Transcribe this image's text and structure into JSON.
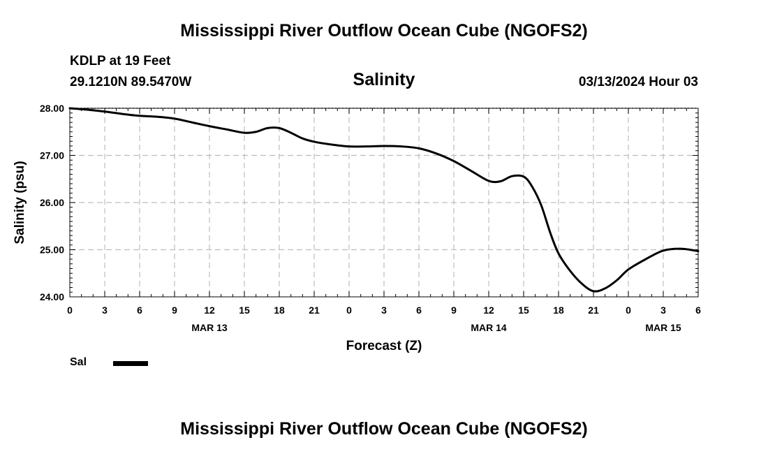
{
  "header": {
    "title": "Mississippi River Outflow Ocean Cube (NGOFS2)",
    "station": "KDLP at 19 Feet",
    "location": "29.1210N  89.5470W",
    "datetime": "03/13/2024 Hour 03"
  },
  "footer": {
    "title": "Mississippi River Outflow Ocean Cube (NGOFS2)"
  },
  "legend": {
    "label": "Sal",
    "color": "#000000"
  },
  "chart_data": {
    "type": "line",
    "title": "Salinity",
    "xlabel": "Forecast (Z)",
    "ylabel": "Salinity (psu)",
    "xlim": [
      0,
      54
    ],
    "ylim": [
      24.0,
      28.0
    ],
    "grid": true,
    "yticks": [
      {
        "value": 24.0,
        "label": "24.00"
      },
      {
        "value": 25.0,
        "label": "25.00"
      },
      {
        "value": 26.0,
        "label": "26.00"
      },
      {
        "value": 27.0,
        "label": "27.00"
      },
      {
        "value": 28.0,
        "label": "28.00"
      }
    ],
    "xticks": [
      {
        "value": 0,
        "label": "0"
      },
      {
        "value": 3,
        "label": "3"
      },
      {
        "value": 6,
        "label": "6"
      },
      {
        "value": 9,
        "label": "9"
      },
      {
        "value": 12,
        "label": "12"
      },
      {
        "value": 15,
        "label": "15"
      },
      {
        "value": 18,
        "label": "18"
      },
      {
        "value": 21,
        "label": "21"
      },
      {
        "value": 24,
        "label": "0"
      },
      {
        "value": 27,
        "label": "3"
      },
      {
        "value": 30,
        "label": "6"
      },
      {
        "value": 33,
        "label": "9"
      },
      {
        "value": 36,
        "label": "12"
      },
      {
        "value": 39,
        "label": "15"
      },
      {
        "value": 42,
        "label": "18"
      },
      {
        "value": 45,
        "label": "21"
      },
      {
        "value": 48,
        "label": "0"
      },
      {
        "value": 51,
        "label": "3"
      },
      {
        "value": 54,
        "label": "6"
      }
    ],
    "date_labels": [
      {
        "value": 12,
        "label": "MAR 13"
      },
      {
        "value": 36,
        "label": "MAR 14"
      },
      {
        "value": 51,
        "label": "MAR 15"
      }
    ],
    "series": [
      {
        "name": "Sal",
        "color": "#000000",
        "x": [
          0,
          1.5,
          3,
          4.5,
          6,
          7.5,
          9,
          10.5,
          12,
          13.5,
          15,
          16,
          17,
          18,
          19,
          20,
          21,
          22.5,
          24,
          25.5,
          27,
          28.5,
          30,
          31.5,
          33,
          34.5,
          36,
          37,
          38,
          39,
          39.7,
          40.5,
          41.3,
          42,
          43,
          44,
          45,
          46,
          47,
          48,
          49.5,
          51,
          52.5,
          54
        ],
        "values": [
          28.0,
          27.97,
          27.93,
          27.88,
          27.84,
          27.82,
          27.78,
          27.7,
          27.62,
          27.55,
          27.48,
          27.5,
          27.58,
          27.58,
          27.48,
          27.36,
          27.29,
          27.23,
          27.19,
          27.19,
          27.2,
          27.19,
          27.15,
          27.04,
          26.88,
          26.67,
          26.46,
          26.45,
          26.56,
          26.55,
          26.35,
          25.95,
          25.35,
          24.92,
          24.55,
          24.28,
          24.12,
          24.18,
          24.35,
          24.58,
          24.8,
          24.98,
          25.02,
          24.97
        ]
      }
    ]
  }
}
